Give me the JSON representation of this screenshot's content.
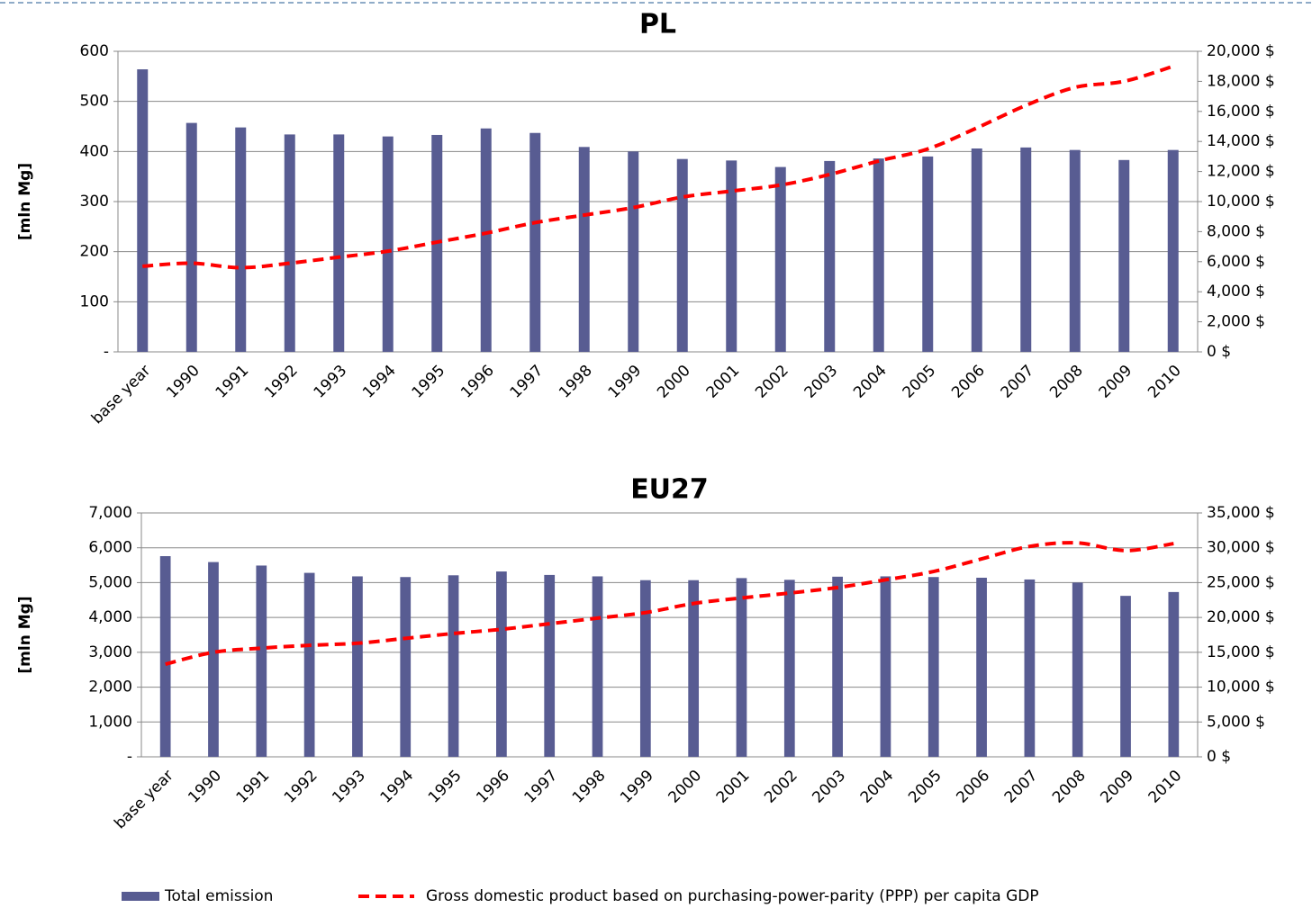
{
  "chart_data": [
    {
      "type": "bar_line",
      "title": "PL",
      "ylabel": "[mln Mg]",
      "categories": [
        "base year",
        "1990",
        "1991",
        "1992",
        "1993",
        "1994",
        "1995",
        "1996",
        "1997",
        "1998",
        "1999",
        "2000",
        "2001",
        "2002",
        "2003",
        "2004",
        "2005",
        "2006",
        "2007",
        "2008",
        "2009",
        "2010"
      ],
      "series": [
        {
          "name": "Total emission",
          "type": "bar",
          "color": "#585c92",
          "values": [
            564,
            457,
            448,
            434,
            434,
            430,
            433,
            446,
            437,
            409,
            400,
            385,
            382,
            369,
            381,
            386,
            390,
            406,
            408,
            403,
            383,
            403
          ]
        },
        {
          "name": "Gross domestic product based on purchasing-power-parity (PPP) per capita GDP",
          "type": "line",
          "style": "dashed",
          "axis": "y2",
          "color": "#ff0000",
          "values": [
            5700,
            5900,
            5600,
            5900,
            6300,
            6700,
            7300,
            7900,
            8600,
            9100,
            9600,
            10300,
            10700,
            11100,
            11800,
            12700,
            13500,
            14900,
            16400,
            17600,
            18000,
            19000
          ]
        }
      ],
      "ylim": [
        0,
        600
      ],
      "yticks": [
        {
          "value": 0,
          "label": "-"
        },
        100,
        200,
        300,
        400,
        500,
        600
      ],
      "y2lim": [
        0,
        20000
      ],
      "y2ticks": [
        {
          "value": 0,
          "label": "0 $"
        },
        {
          "value": 2000,
          "label": "2,000 $"
        },
        {
          "value": 4000,
          "label": "4,000 $"
        },
        {
          "value": 6000,
          "label": "6,000 $"
        },
        {
          "value": 8000,
          "label": "8,000 $"
        },
        {
          "value": 10000,
          "label": "10,000 $"
        },
        {
          "value": 12000,
          "label": "12,000 $"
        },
        {
          "value": 14000,
          "label": "14,000 $"
        },
        {
          "value": 16000,
          "label": "16,000 $"
        },
        {
          "value": 18000,
          "label": "18,000 $"
        },
        {
          "value": 20000,
          "label": "20,000 $"
        }
      ],
      "grid": true
    },
    {
      "type": "bar_line",
      "title": "EU27",
      "ylabel": "[mln Mg]",
      "categories": [
        "base year",
        "1990",
        "1991",
        "1992",
        "1993",
        "1994",
        "1995",
        "1996",
        "1997",
        "1998",
        "1999",
        "2000",
        "2001",
        "2002",
        "2003",
        "2004",
        "2005",
        "2006",
        "2007",
        "2008",
        "2009",
        "2010"
      ],
      "series": [
        {
          "type": "bar",
          "color": "#585c92",
          "values": [
            5760,
            5590,
            5490,
            5280,
            5180,
            5160,
            5210,
            5320,
            5220,
            5180,
            5070,
            5070,
            5130,
            5080,
            5170,
            5180,
            5160,
            5140,
            5090,
            5000,
            4620,
            4730
          ]
        },
        {
          "type": "line",
          "style": "dashed",
          "axis": "y2",
          "color": "#ff0000",
          "values": [
            13300,
            15000,
            15600,
            16000,
            16300,
            17000,
            17700,
            18300,
            19100,
            19900,
            20700,
            22000,
            22800,
            23500,
            24300,
            25400,
            26600,
            28400,
            30200,
            30700,
            29600,
            30600
          ]
        }
      ],
      "ylim": [
        0,
        7000
      ],
      "yticks": [
        {
          "value": 0,
          "label": "-"
        },
        {
          "value": 1000,
          "label": "1,000"
        },
        {
          "value": 2000,
          "label": "2,000"
        },
        {
          "value": 3000,
          "label": "3,000"
        },
        {
          "value": 4000,
          "label": "4,000"
        },
        {
          "value": 5000,
          "label": "5,000"
        },
        {
          "value": 6000,
          "label": "6,000"
        },
        {
          "value": 7000,
          "label": "7,000"
        }
      ],
      "y2lim": [
        0,
        35000
      ],
      "y2ticks": [
        {
          "value": 0,
          "label": "0 $"
        },
        {
          "value": 5000,
          "label": "5,000 $"
        },
        {
          "value": 10000,
          "label": "10,000 $"
        },
        {
          "value": 15000,
          "label": "15,000 $"
        },
        {
          "value": 20000,
          "label": "20,000 $"
        },
        {
          "value": 25000,
          "label": "25,000 $"
        },
        {
          "value": 30000,
          "label": "30,000 $"
        },
        {
          "value": 35000,
          "label": "35,000 $"
        }
      ],
      "grid": true
    }
  ]
}
